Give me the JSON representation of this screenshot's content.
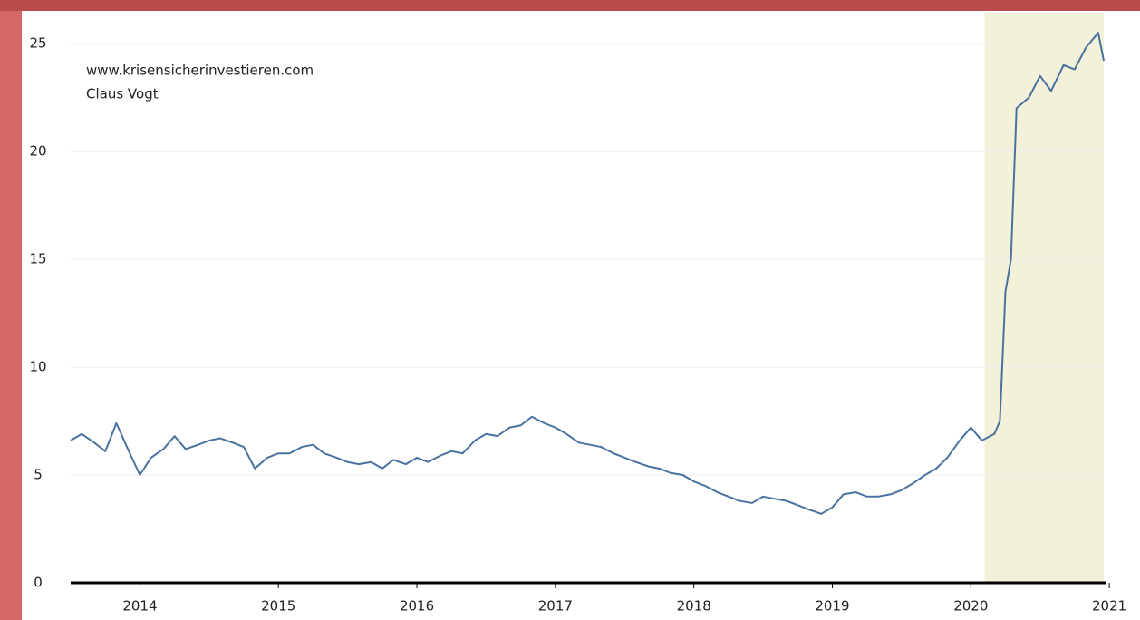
{
  "chart_data": {
    "type": "line",
    "annotations": [
      "www.krisensicherinvestieren.com",
      "Claus Vogt"
    ],
    "xlim": [
      2013.5,
      2020.96
    ],
    "ylim": [
      0,
      26
    ],
    "xticks": [
      2014,
      2015,
      2016,
      2017,
      2018,
      2019,
      2020,
      2021
    ],
    "yticks": [
      0,
      5,
      10,
      15,
      20,
      25
    ],
    "grid": true,
    "highlight_x": [
      2020.1,
      2020.96
    ],
    "highlight_color": "#f3f1da",
    "series": [
      {
        "color": "#4a72a0",
        "x": [
          2013.5,
          2013.58,
          2013.67,
          2013.75,
          2013.83,
          2013.92,
          2014.0,
          2014.08,
          2014.17,
          2014.25,
          2014.33,
          2014.42,
          2014.5,
          2014.58,
          2014.67,
          2014.75,
          2014.83,
          2014.92,
          2015.0,
          2015.08,
          2015.17,
          2015.25,
          2015.33,
          2015.42,
          2015.5,
          2015.58,
          2015.67,
          2015.75,
          2015.83,
          2015.92,
          2016.0,
          2016.08,
          2016.17,
          2016.25,
          2016.33,
          2016.42,
          2016.5,
          2016.58,
          2016.67,
          2016.75,
          2016.83,
          2016.92,
          2017.0,
          2017.08,
          2017.17,
          2017.25,
          2017.33,
          2017.42,
          2017.5,
          2017.58,
          2017.67,
          2017.75,
          2017.83,
          2017.92,
          2018.0,
          2018.08,
          2018.17,
          2018.25,
          2018.33,
          2018.42,
          2018.5,
          2018.58,
          2018.67,
          2018.75,
          2018.83,
          2018.92,
          2019.0,
          2019.08,
          2019.17,
          2019.25,
          2019.33,
          2019.42,
          2019.5,
          2019.58,
          2019.67,
          2019.75,
          2019.83,
          2019.92,
          2020.0,
          2020.08,
          2020.17,
          2020.21,
          2020.25,
          2020.29,
          2020.33,
          2020.42,
          2020.5,
          2020.58,
          2020.67,
          2020.75,
          2020.83,
          2020.92,
          2020.96
        ],
        "values": [
          6.6,
          6.9,
          6.5,
          6.1,
          7.4,
          6.1,
          5.0,
          5.8,
          6.2,
          6.8,
          6.2,
          6.4,
          6.6,
          6.7,
          6.5,
          6.3,
          5.3,
          5.8,
          6.0,
          6.0,
          6.3,
          6.4,
          6.0,
          5.8,
          5.6,
          5.5,
          5.6,
          5.3,
          5.7,
          5.5,
          5.8,
          5.6,
          5.9,
          6.1,
          6.0,
          6.6,
          6.9,
          6.8,
          7.2,
          7.3,
          7.7,
          7.4,
          7.2,
          6.9,
          6.5,
          6.4,
          6.3,
          6.0,
          5.8,
          5.6,
          5.4,
          5.3,
          5.1,
          5.0,
          4.7,
          4.5,
          4.2,
          4.0,
          3.8,
          3.7,
          4.0,
          3.9,
          3.8,
          3.6,
          3.4,
          3.2,
          3.5,
          4.1,
          4.2,
          4.0,
          4.0,
          4.1,
          4.3,
          4.6,
          5.0,
          5.3,
          5.8,
          6.6,
          7.2,
          6.6,
          6.9,
          7.5,
          13.5,
          15,
          22,
          22.5,
          23.5,
          22.8,
          24.0,
          23.8,
          24.8,
          25.5,
          24.2
        ]
      }
    ]
  }
}
